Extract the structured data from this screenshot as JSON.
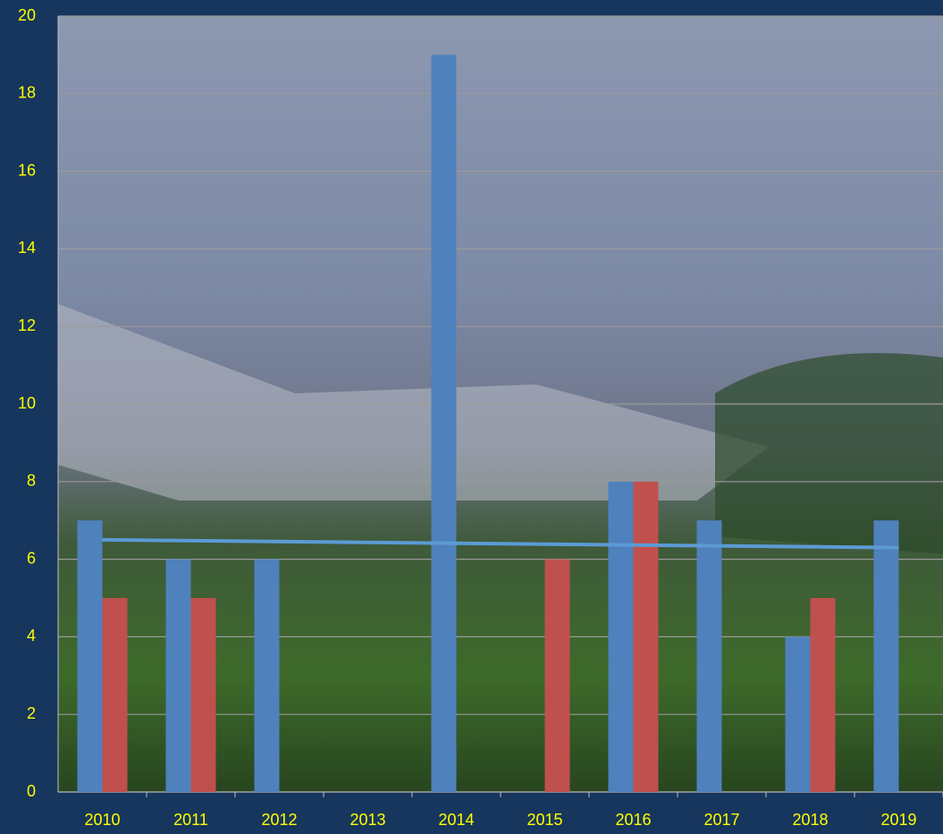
{
  "chart_data": {
    "type": "bar",
    "categories": [
      "2010",
      "2011",
      "2012",
      "2013",
      "2014",
      "2015",
      "2016",
      "2017",
      "2018",
      "2019"
    ],
    "series": [
      {
        "color": "#4f81bd",
        "values": [
          7,
          6,
          6,
          null,
          19,
          null,
          8,
          7,
          4,
          7
        ]
      },
      {
        "color": "#c0504d",
        "values": [
          5,
          5,
          null,
          null,
          null,
          6,
          8,
          null,
          5,
          null
        ]
      }
    ],
    "trendline": {
      "color": "#5b9bd5",
      "from": 6.5,
      "to": 6.3
    },
    "ylim": [
      0,
      20
    ],
    "yticks": [
      0,
      2,
      4,
      6,
      8,
      10,
      12,
      14,
      16,
      18,
      20
    ],
    "grid": true,
    "tick_color": "#ffff00"
  }
}
